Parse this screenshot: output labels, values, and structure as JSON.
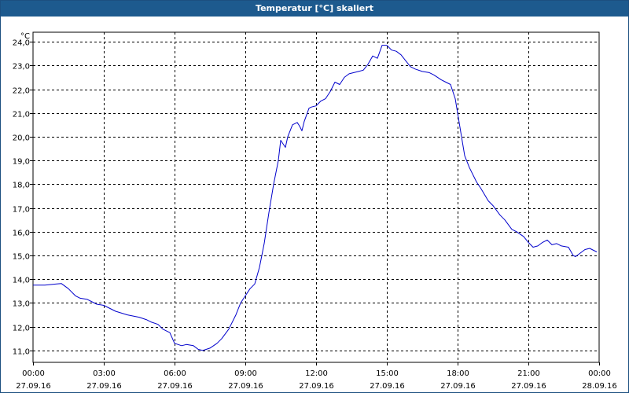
{
  "chart_data": {
    "type": "line",
    "title": "Temperatur [°C] skaliert",
    "ylabel": "°C",
    "xlabel": "",
    "ylim": [
      10.5,
      24.4
    ],
    "xlim": [
      0,
      24
    ],
    "grid": true,
    "line_color": "#0000cc",
    "y_ticks": [
      {
        "value": 24,
        "label": "24,0"
      },
      {
        "value": 23,
        "label": "23,0"
      },
      {
        "value": 22,
        "label": "22,0"
      },
      {
        "value": 21,
        "label": "21,0"
      },
      {
        "value": 20,
        "label": "20,0"
      },
      {
        "value": 19,
        "label": "19,0"
      },
      {
        "value": 18,
        "label": "18,0"
      },
      {
        "value": 17,
        "label": "17,0"
      },
      {
        "value": 16,
        "label": "16,0"
      },
      {
        "value": 15,
        "label": "15,0"
      },
      {
        "value": 14,
        "label": "14,0"
      },
      {
        "value": 13,
        "label": "13,0"
      },
      {
        "value": 12,
        "label": "12,0"
      },
      {
        "value": 11,
        "label": "11,0"
      }
    ],
    "x_ticks": [
      {
        "hour": 0,
        "time": "00:00",
        "date": "27.09.16"
      },
      {
        "hour": 3,
        "time": "03:00",
        "date": "27.09.16"
      },
      {
        "hour": 6,
        "time": "06:00",
        "date": "27.09.16"
      },
      {
        "hour": 9,
        "time": "09:00",
        "date": "27.09.16"
      },
      {
        "hour": 12,
        "time": "12:00",
        "date": "27.09.16"
      },
      {
        "hour": 15,
        "time": "15:00",
        "date": "27.09.16"
      },
      {
        "hour": 18,
        "time": "18:00",
        "date": "27.09.16"
      },
      {
        "hour": 21,
        "time": "21:00",
        "date": "27.09.16"
      },
      {
        "hour": 24,
        "time": "00:00",
        "date": "28.09.16"
      }
    ],
    "series": [
      {
        "x": [
          0,
          0.5,
          1.0,
          1.2,
          1.5,
          1.8,
          2.0,
          2.3,
          2.7,
          3.0,
          3.3,
          3.5,
          4.0,
          4.5,
          4.8,
          5.0,
          5.3,
          5.5,
          5.8,
          6.0,
          6.3,
          6.5,
          6.8,
          7.0,
          7.2,
          7.5,
          7.8,
          8.0,
          8.3,
          8.6,
          8.8,
          9.0,
          9.2,
          9.4,
          9.6,
          9.8,
          10.0,
          10.2,
          10.4,
          10.5,
          10.7,
          10.8,
          11.0,
          11.2,
          11.3,
          11.4,
          11.5,
          11.7,
          11.8,
          12.0,
          12.2,
          12.4,
          12.6,
          12.8,
          13.0,
          13.2,
          13.4,
          13.6,
          13.8,
          14.0,
          14.2,
          14.4,
          14.6,
          14.8,
          15.0,
          15.2,
          15.4,
          15.6,
          15.8,
          16.0,
          16.2,
          16.5,
          16.8,
          17.0,
          17.3,
          17.5,
          17.7,
          17.9,
          18.1,
          18.3,
          18.5,
          18.8,
          19.0,
          19.3,
          19.5,
          19.8,
          20.0,
          20.3,
          20.5,
          20.8,
          21.0,
          21.2,
          21.4,
          21.6,
          21.8,
          22.0,
          22.2,
          22.4,
          22.7,
          22.9,
          23.0,
          23.2,
          23.4,
          23.6,
          23.8,
          23.9
        ],
        "y": [
          13.75,
          13.75,
          13.8,
          13.82,
          13.6,
          13.3,
          13.2,
          13.15,
          12.95,
          12.9,
          12.75,
          12.65,
          12.5,
          12.4,
          12.3,
          12.2,
          12.1,
          11.9,
          11.75,
          11.3,
          11.2,
          11.25,
          11.2,
          11.05,
          11.0,
          11.1,
          11.3,
          11.5,
          11.9,
          12.5,
          13.0,
          13.3,
          13.6,
          13.8,
          14.5,
          15.5,
          16.8,
          18.0,
          19.0,
          19.85,
          19.55,
          20.0,
          20.5,
          20.6,
          20.45,
          20.25,
          20.65,
          21.2,
          21.25,
          21.3,
          21.5,
          21.6,
          21.9,
          22.3,
          22.2,
          22.5,
          22.65,
          22.7,
          22.75,
          22.8,
          23.05,
          23.4,
          23.3,
          23.85,
          23.85,
          23.65,
          23.6,
          23.45,
          23.2,
          22.95,
          22.85,
          22.75,
          22.7,
          22.6,
          22.4,
          22.3,
          22.2,
          21.6,
          20.4,
          19.2,
          18.7,
          18.1,
          17.8,
          17.3,
          17.1,
          16.7,
          16.5,
          16.1,
          16.0,
          15.8,
          15.55,
          15.35,
          15.4,
          15.55,
          15.65,
          15.45,
          15.5,
          15.4,
          15.35,
          15.0,
          14.95,
          15.1,
          15.25,
          15.3,
          15.2,
          15.15
        ]
      }
    ]
  }
}
